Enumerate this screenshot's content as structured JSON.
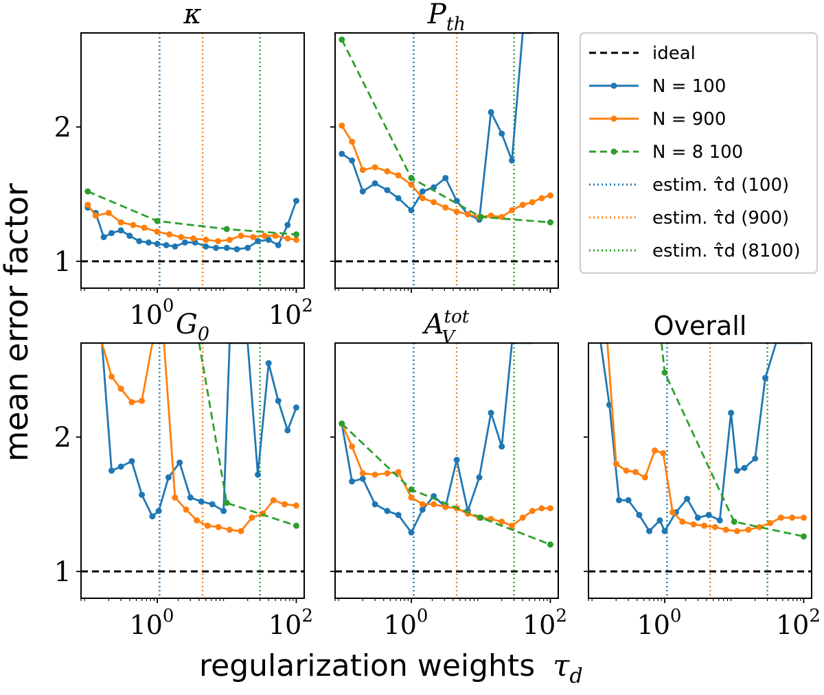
{
  "figure": {
    "ylabel": "mean error factor",
    "xlabel": "regularization weights",
    "xlabel_symbol": "τ",
    "xlabel_sub": "d"
  },
  "colors": {
    "ideal": "#000000",
    "n100": "#1f77b4",
    "n900": "#ff7f0e",
    "n8100": "#2ca02c"
  },
  "legend": {
    "items": [
      {
        "key": "ideal",
        "label": "ideal",
        "style": "dashed",
        "color": "#000000",
        "marker": false
      },
      {
        "key": "n100",
        "label": "N = 100",
        "style": "solid",
        "color": "#1f77b4",
        "marker": true
      },
      {
        "key": "n900",
        "label": "N = 900",
        "style": "solid",
        "color": "#ff7f0e",
        "marker": true
      },
      {
        "key": "n8100",
        "label": "N = 8 100",
        "style": "dashed",
        "color": "#2ca02c",
        "marker": true
      },
      {
        "key": "e100",
        "label": "estim. τ̂d (100)",
        "style": "dotted",
        "color": "#1f77b4",
        "marker": false
      },
      {
        "key": "e900",
        "label": "estim. τ̂d (900)",
        "style": "dotted",
        "color": "#ff7f0e",
        "marker": false
      },
      {
        "key": "e8100",
        "label": "estim. τ̂d (8100)",
        "style": "dotted",
        "color": "#2ca02c",
        "marker": false
      }
    ]
  },
  "chart_data": [
    {
      "type": "line",
      "title": "κ",
      "title_kind": "math",
      "xscale": "log",
      "xlim": [
        0.08,
        130
      ],
      "ylim": [
        0.8,
        2.7
      ],
      "yticks": [
        1,
        2
      ],
      "ytick_labels": [
        "1",
        "2"
      ],
      "xticks": [
        1,
        100
      ],
      "xtick_labels": [
        "10^0",
        "10^2"
      ],
      "ideal": 1,
      "estim_lines": [
        1.08,
        4.5,
        30
      ],
      "series": [
        {
          "name": "N = 100",
          "key": "n100",
          "x": [
            0.1,
            0.13,
            0.17,
            0.22,
            0.3,
            0.4,
            0.55,
            0.75,
            1.0,
            1.35,
            1.8,
            2.5,
            3.5,
            5,
            7,
            10,
            14,
            20,
            28,
            40,
            55,
            75,
            100
          ],
          "y": [
            1.4,
            1.36,
            1.18,
            1.21,
            1.23,
            1.19,
            1.15,
            1.14,
            1.13,
            1.12,
            1.11,
            1.14,
            1.14,
            1.11,
            1.1,
            1.1,
            1.09,
            1.1,
            1.15,
            1.16,
            1.12,
            1.27,
            1.45
          ]
        },
        {
          "name": "N = 900",
          "key": "n900",
          "x": [
            0.1,
            0.13,
            0.2,
            0.3,
            0.45,
            0.65,
            1.0,
            1.5,
            2.2,
            3.3,
            5,
            7.5,
            11,
            16,
            24,
            35,
            50,
            75,
            100
          ],
          "y": [
            1.42,
            1.34,
            1.36,
            1.29,
            1.27,
            1.25,
            1.22,
            1.2,
            1.18,
            1.17,
            1.16,
            1.15,
            1.16,
            1.19,
            1.18,
            1.19,
            1.19,
            1.17,
            1.16
          ]
        },
        {
          "name": "N = 8 100",
          "key": "n8100",
          "x": [
            0.1,
            1.0,
            10,
            100
          ],
          "y": [
            1.52,
            1.3,
            1.24,
            1.2
          ]
        }
      ]
    },
    {
      "type": "line",
      "title": "P_th",
      "title_main": "P",
      "title_sub": "th",
      "title_kind": "math",
      "xscale": "log",
      "xlim": [
        0.08,
        130
      ],
      "ylim": [
        0.8,
        2.7
      ],
      "yticks": [
        1,
        2
      ],
      "ytick_labels": [
        "",
        ""
      ],
      "xticks": [
        1,
        100
      ],
      "xtick_labels": [
        "",
        ""
      ],
      "ideal": 1,
      "estim_lines": [
        1.08,
        4.5,
        30
      ],
      "series": [
        {
          "name": "N = 100",
          "key": "n100",
          "x": [
            0.1,
            0.14,
            0.2,
            0.3,
            0.45,
            0.65,
            1.0,
            1.45,
            2.1,
            3.1,
            4.5,
            6.5,
            9.5,
            14,
            20,
            28,
            40,
            55
          ],
          "y": [
            1.8,
            1.75,
            1.52,
            1.58,
            1.53,
            1.47,
            1.38,
            1.52,
            1.55,
            1.62,
            1.45,
            1.35,
            1.31,
            2.11,
            1.95,
            1.75,
            2.7,
            2.7
          ]
        },
        {
          "name": "N = 900",
          "key": "n900",
          "x": [
            0.1,
            0.14,
            0.2,
            0.3,
            0.45,
            0.65,
            1.0,
            1.45,
            2.1,
            3.1,
            4.5,
            6.5,
            9.5,
            14,
            20,
            28,
            40,
            55,
            75,
            100
          ],
          "y": [
            2.01,
            1.89,
            1.68,
            1.7,
            1.67,
            1.64,
            1.57,
            1.47,
            1.44,
            1.4,
            1.37,
            1.35,
            1.33,
            1.34,
            1.33,
            1.38,
            1.42,
            1.44,
            1.47,
            1.49
          ]
        },
        {
          "name": "N = 8 100",
          "key": "n8100",
          "x": [
            0.1,
            1.0,
            10,
            100
          ],
          "y": [
            2.65,
            1.62,
            1.33,
            1.29
          ]
        }
      ]
    },
    {
      "type": "line",
      "title": "G_0",
      "title_main": "G",
      "title_sub": "0",
      "title_kind": "math",
      "xscale": "log",
      "xlim": [
        0.08,
        130
      ],
      "ylim": [
        0.8,
        2.7
      ],
      "yticks": [
        1,
        2
      ],
      "ytick_labels": [
        "1",
        "2"
      ],
      "xticks": [
        1,
        100
      ],
      "xtick_labels": [
        "10^0",
        "10^2"
      ],
      "ideal": 1,
      "estim_lines": [
        1.08,
        4.5,
        30
      ],
      "series": [
        {
          "name": "N = 100",
          "key": "n100",
          "x": [
            0.16,
            0.22,
            0.3,
            0.43,
            0.6,
            0.85,
            1.05,
            1.45,
            2.1,
            3.0,
            4.3,
            6.2,
            9,
            11,
            14,
            20,
            28,
            40,
            55,
            75,
            100
          ],
          "y": [
            2.7,
            1.75,
            1.78,
            1.82,
            1.57,
            1.41,
            1.45,
            1.7,
            1.81,
            1.55,
            1.52,
            1.5,
            1.45,
            2.7,
            2.7,
            2.7,
            1.72,
            2.55,
            2.27,
            2.05,
            2.22
          ]
        },
        {
          "name": "N = 900",
          "key": "n900",
          "x": [
            0.16,
            0.22,
            0.3,
            0.43,
            0.6,
            0.85,
            1.25,
            1.8,
            2.6,
            3.7,
            5.3,
            7.6,
            11,
            16,
            23,
            33,
            47,
            68,
            100
          ],
          "y": [
            2.7,
            2.45,
            2.36,
            2.26,
            2.27,
            2.7,
            2.7,
            1.55,
            1.46,
            1.38,
            1.34,
            1.33,
            1.31,
            1.3,
            1.4,
            1.43,
            1.53,
            1.5,
            1.49
          ]
        },
        {
          "name": "N = 8 100",
          "key": "n8100",
          "x": [
            4.0,
            10,
            100
          ],
          "y": [
            2.7,
            1.51,
            1.34
          ]
        }
      ]
    },
    {
      "type": "line",
      "title": "A_V^tot",
      "title_main": "A",
      "title_sub": "V",
      "title_sup": "tot",
      "title_kind": "math",
      "xscale": "log",
      "xlim": [
        0.08,
        130
      ],
      "ylim": [
        0.8,
        2.7
      ],
      "yticks": [
        1,
        2
      ],
      "ytick_labels": [
        "",
        ""
      ],
      "xticks": [
        1,
        100
      ],
      "xtick_labels": [
        "10^0",
        "10^2"
      ],
      "ideal": 1,
      "estim_lines": [
        1.08,
        4.5,
        30
      ],
      "series": [
        {
          "name": "N = 100",
          "key": "n100",
          "x": [
            0.1,
            0.14,
            0.2,
            0.3,
            0.45,
            0.65,
            1.0,
            1.45,
            2.1,
            3.1,
            4.5,
            6.5,
            9.5,
            14,
            20,
            28,
            40,
            55
          ],
          "y": [
            2.1,
            1.67,
            1.69,
            1.5,
            1.45,
            1.42,
            1.29,
            1.46,
            1.56,
            1.48,
            1.83,
            1.45,
            1.7,
            2.18,
            1.93,
            2.7,
            2.7,
            2.7
          ]
        },
        {
          "name": "N = 900",
          "key": "n900",
          "x": [
            0.1,
            0.14,
            0.2,
            0.3,
            0.45,
            0.65,
            1.0,
            1.45,
            2.1,
            3.1,
            4.5,
            6.5,
            9.5,
            14,
            20,
            28,
            40,
            55,
            75,
            100
          ],
          "y": [
            2.1,
            1.93,
            1.73,
            1.72,
            1.73,
            1.74,
            1.55,
            1.5,
            1.5,
            1.48,
            1.47,
            1.43,
            1.4,
            1.39,
            1.37,
            1.34,
            1.4,
            1.45,
            1.47,
            1.47
          ]
        },
        {
          "name": "N = 8 100",
          "key": "n8100",
          "x": [
            0.1,
            1.0,
            10,
            100
          ],
          "y": [
            2.1,
            1.61,
            1.4,
            1.2
          ]
        }
      ]
    },
    {
      "type": "line",
      "title": "Overall",
      "title_kind": "text",
      "xscale": "log",
      "xlim": [
        0.08,
        130
      ],
      "ylim": [
        0.8,
        2.7
      ],
      "yticks": [
        1,
        2
      ],
      "ytick_labels": [
        "",
        ""
      ],
      "xticks": [
        1,
        100
      ],
      "xtick_labels": [
        "10^0",
        "10^2"
      ],
      "ideal": 1,
      "estim_lines": [
        1.08,
        4.5,
        30
      ],
      "series": [
        {
          "name": "N = 100",
          "key": "n100",
          "x": [
            0.12,
            0.16,
            0.22,
            0.3,
            0.43,
            0.6,
            0.85,
            1.0,
            1.45,
            2.1,
            3.0,
            4.3,
            6.2,
            9,
            11,
            14,
            20,
            28,
            40,
            55,
            75,
            100
          ],
          "y": [
            2.7,
            2.24,
            1.53,
            1.53,
            1.42,
            1.3,
            1.38,
            1.3,
            1.44,
            1.54,
            1.4,
            1.42,
            1.38,
            2.18,
            1.75,
            1.77,
            1.84,
            2.44,
            2.7,
            2.7,
            2.7,
            2.7
          ]
        },
        {
          "name": "N = 900",
          "key": "n900",
          "x": [
            0.15,
            0.2,
            0.28,
            0.38,
            0.52,
            0.72,
            0.95,
            1.3,
            1.8,
            2.6,
            3.7,
            5.3,
            7.6,
            11,
            16,
            23,
            33,
            47,
            68,
            100
          ],
          "y": [
            2.7,
            1.8,
            1.75,
            1.74,
            1.7,
            1.9,
            1.88,
            1.44,
            1.37,
            1.35,
            1.34,
            1.33,
            1.31,
            1.3,
            1.31,
            1.33,
            1.36,
            1.4,
            1.4,
            1.4
          ]
        },
        {
          "name": "N = 8 100",
          "key": "n8100",
          "x": [
            0.9,
            1.0,
            10,
            100
          ],
          "y": [
            2.7,
            2.48,
            1.37,
            1.26
          ]
        }
      ]
    }
  ]
}
